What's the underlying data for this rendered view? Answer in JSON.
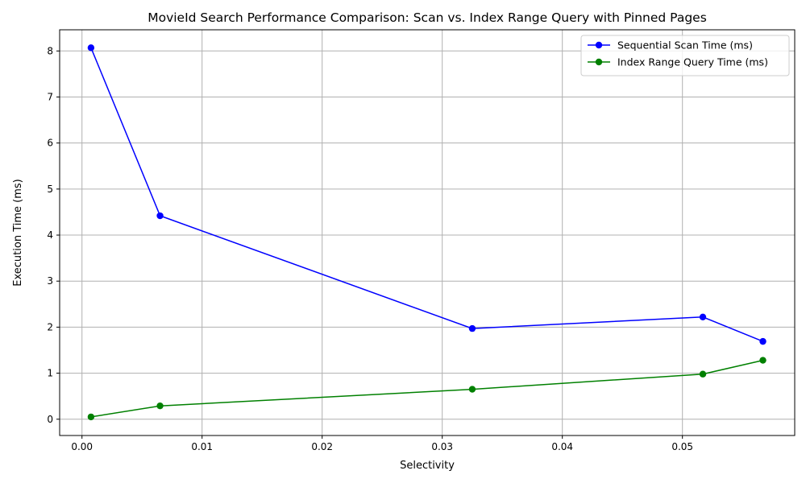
{
  "chart_data": {
    "type": "line",
    "title": "MovieId Search Performance Comparison: Scan vs. Index Range Query with Pinned Pages",
    "xlabel": "Selectivity",
    "ylabel": "Execution Time (ms)",
    "xlim": [
      -0.00186,
      0.05935
    ],
    "ylim": [
      -0.354,
      8.46
    ],
    "xticks": [
      0.0,
      0.01,
      0.02,
      0.03,
      0.04,
      0.05
    ],
    "xtick_labels": [
      "0.00",
      "0.01",
      "0.02",
      "0.03",
      "0.04",
      "0.05"
    ],
    "yticks": [
      0,
      1,
      2,
      3,
      4,
      5,
      6,
      7,
      8
    ],
    "ytick_labels": [
      "0",
      "1",
      "2",
      "3",
      "4",
      "5",
      "6",
      "7",
      "8"
    ],
    "grid": true,
    "legend_position": "top-right",
    "x": [
      0.00075,
      0.0065,
      0.0325,
      0.0517,
      0.0567
    ],
    "series": [
      {
        "name": "Sequential Scan Time (ms)",
        "color": "#0000ff",
        "marker": "circle",
        "values": [
          8.07,
          4.42,
          1.97,
          2.22,
          1.69
        ]
      },
      {
        "name": "Index Range Query Time (ms)",
        "color": "#008000",
        "marker": "circle",
        "values": [
          0.05,
          0.29,
          0.65,
          0.98,
          1.28
        ]
      }
    ]
  }
}
